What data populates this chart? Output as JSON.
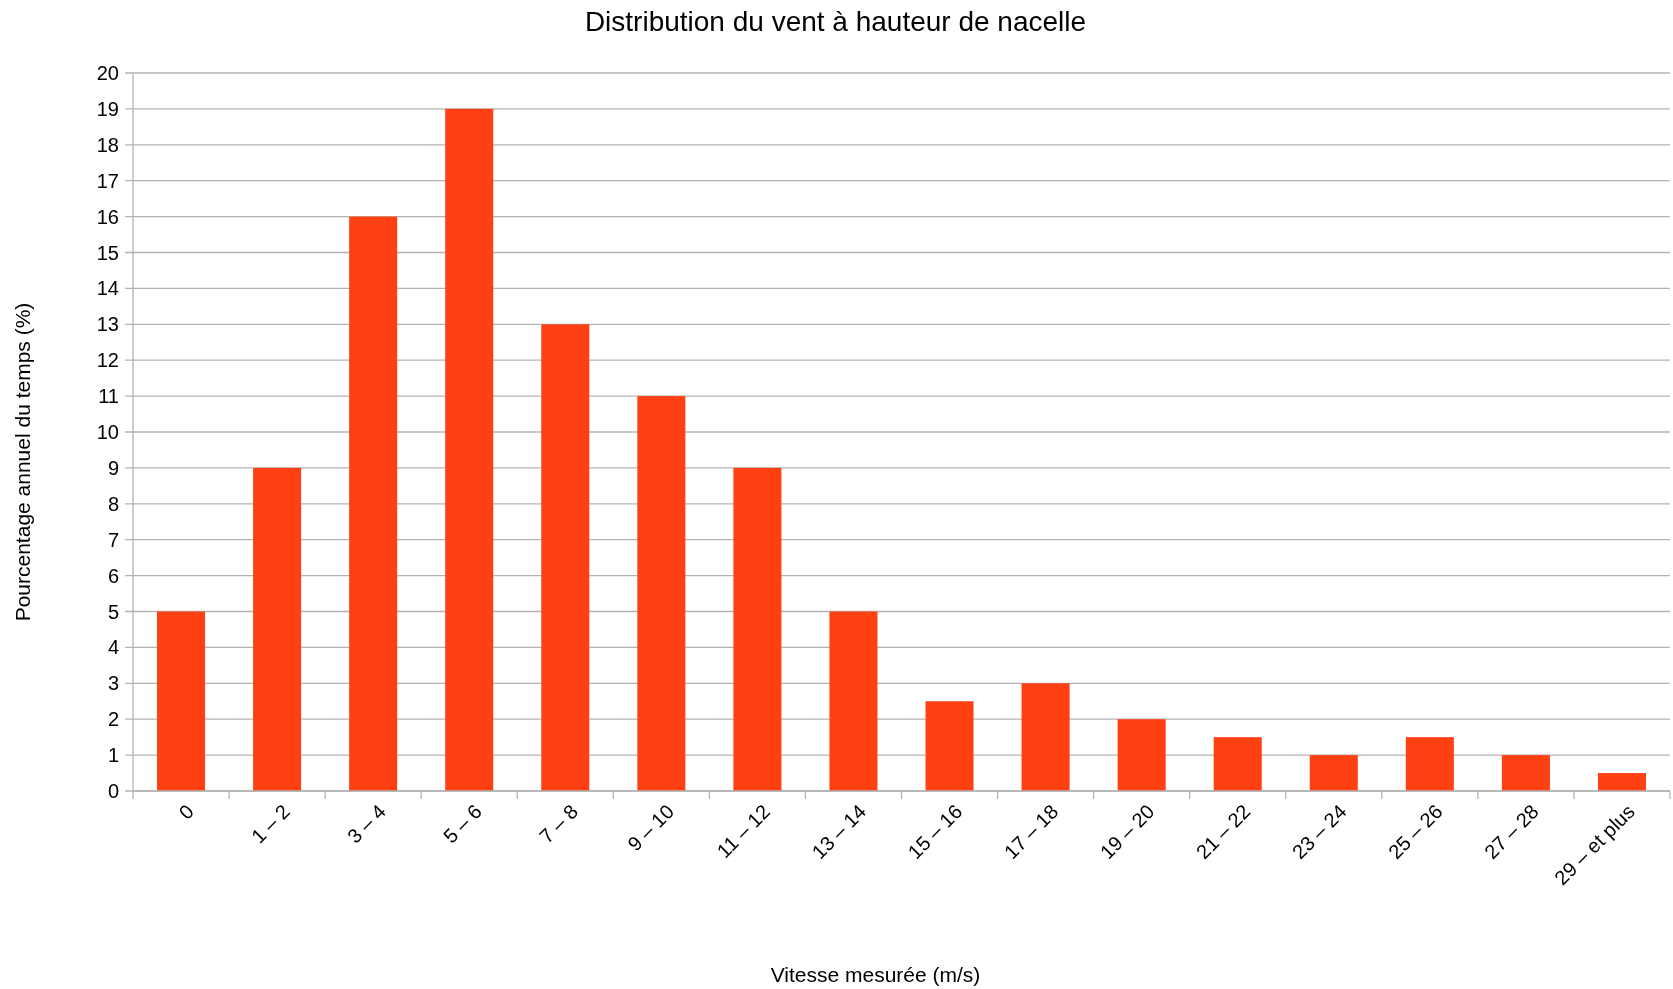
{
  "chart_data": {
    "type": "bar",
    "title": "Distribution du vent à hauteur de nacelle",
    "xlabel": "Vitesse mesurée (m/s)",
    "ylabel": "Pourcentage annuel du temps (%)",
    "categories": [
      "0",
      "1 – 2",
      "3 – 4",
      "5 – 6",
      "7 – 8",
      "9 – 10",
      "11 – 12",
      "13 – 14",
      "15 – 16",
      "17 – 18",
      "19 – 20",
      "21 – 22",
      "23 – 24",
      "25 – 26",
      "27 – 28",
      "29 – et plus"
    ],
    "values": [
      5,
      9,
      16,
      19,
      13,
      11,
      9,
      5,
      2.5,
      3,
      2,
      1.5,
      1,
      1.5,
      1,
      0.5
    ],
    "color": "#ff4013",
    "ylim": [
      0,
      20
    ],
    "yticks": [
      0,
      1,
      2,
      3,
      4,
      5,
      6,
      7,
      8,
      9,
      10,
      11,
      12,
      13,
      14,
      15,
      16,
      17,
      18,
      19,
      20
    ],
    "grid": "y"
  }
}
